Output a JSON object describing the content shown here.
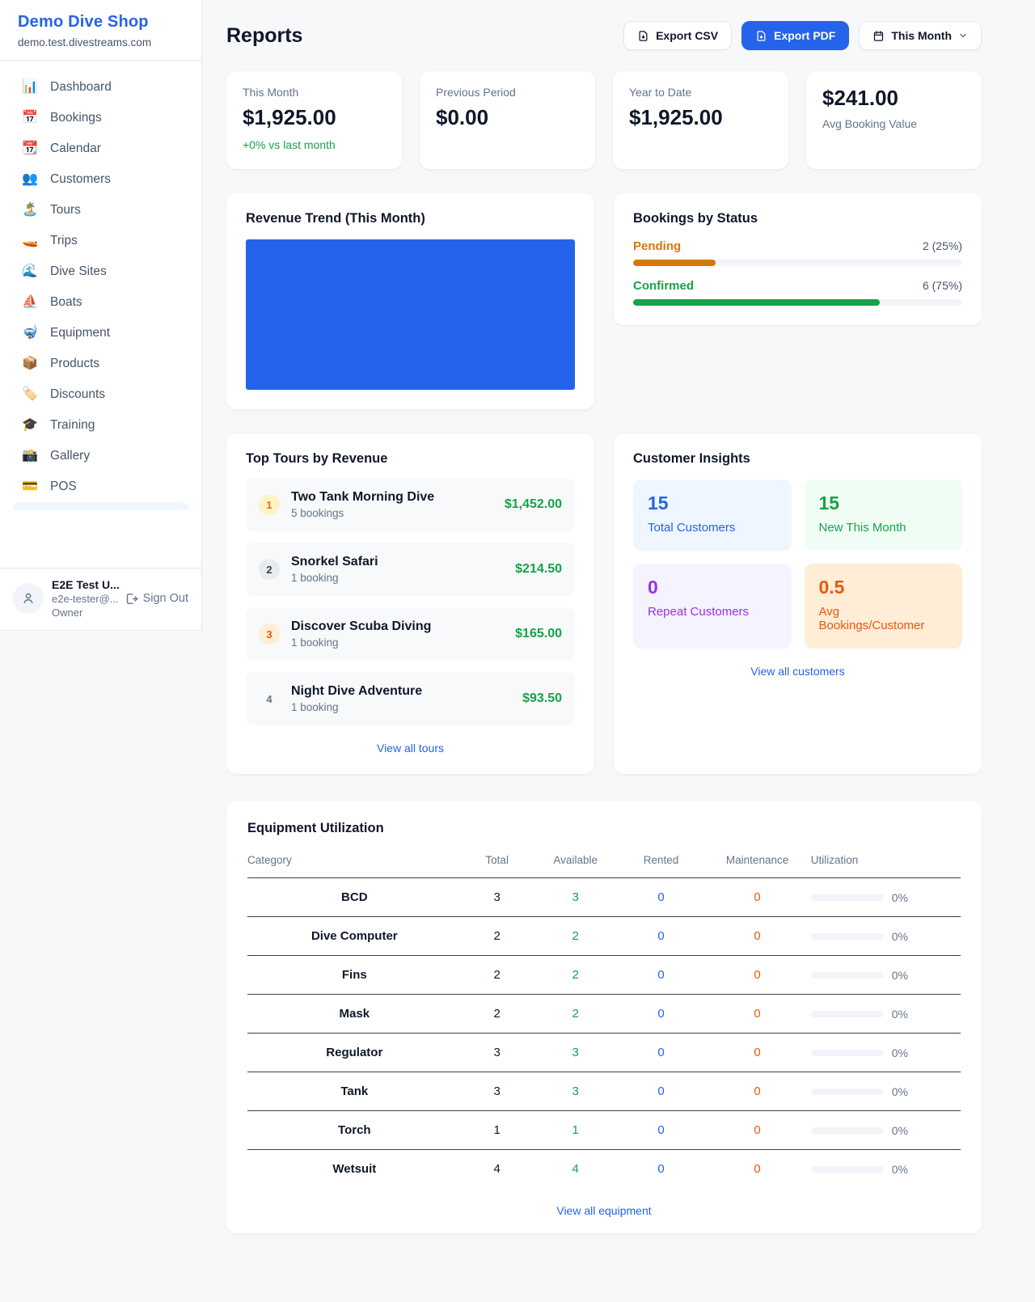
{
  "sidebar": {
    "shop_name": "Demo Dive Shop",
    "shop_domain": "demo.test.divestreams.com",
    "items": [
      {
        "icon": "📊",
        "label": "Dashboard"
      },
      {
        "icon": "📅",
        "label": "Bookings"
      },
      {
        "icon": "📆",
        "label": "Calendar"
      },
      {
        "icon": "👥",
        "label": "Customers"
      },
      {
        "icon": "🏝️",
        "label": "Tours"
      },
      {
        "icon": "🚤",
        "label": "Trips"
      },
      {
        "icon": "🌊",
        "label": "Dive Sites"
      },
      {
        "icon": "⛵",
        "label": "Boats"
      },
      {
        "icon": "🤿",
        "label": "Equipment"
      },
      {
        "icon": "📦",
        "label": "Products"
      },
      {
        "icon": "🏷️",
        "label": "Discounts"
      },
      {
        "icon": "🎓",
        "label": "Training"
      },
      {
        "icon": "📸",
        "label": "Gallery"
      },
      {
        "icon": "💳",
        "label": "POS"
      }
    ],
    "user": {
      "name": "E2E Test U...",
      "email": "e2e-tester@...",
      "role": "Owner",
      "sign_out_label": "Sign Out"
    }
  },
  "header": {
    "title": "Reports",
    "export_csv_label": "Export CSV",
    "export_pdf_label": "Export PDF",
    "period_label": "This Month"
  },
  "stats": [
    {
      "label": "This Month",
      "value": "$1,925.00",
      "delta": "+0% vs last month"
    },
    {
      "label": "Previous Period",
      "value": "$0.00"
    },
    {
      "label": "Year to Date",
      "value": "$1,925.00"
    },
    {
      "label": "Avg Booking Value",
      "value": "$241.00"
    }
  ],
  "revenue_trend": {
    "title": "Revenue Trend (This Month)",
    "bar_color": "#2563eb"
  },
  "bookings_by_status": {
    "title": "Bookings by Status",
    "rows": [
      {
        "label": "Pending",
        "count_text": "2 (25%)",
        "percent": 25,
        "color": "#d97706"
      },
      {
        "label": "Confirmed",
        "count_text": "6 (75%)",
        "percent": 75,
        "color": "#16a34a"
      }
    ]
  },
  "top_tours": {
    "title": "Top Tours by Revenue",
    "view_all_label": "View all tours",
    "items": [
      {
        "rank": "1",
        "name": "Two Tank Morning Dive",
        "bookings": "5 bookings",
        "revenue": "$1,452.00",
        "badge_bg": "#fef3c7",
        "badge_fg": "#d97706"
      },
      {
        "rank": "2",
        "name": "Snorkel Safari",
        "bookings": "1 booking",
        "revenue": "$214.50",
        "badge_bg": "#e9ecef",
        "badge_fg": "#374151"
      },
      {
        "rank": "3",
        "name": "Discover Scuba Diving",
        "bookings": "1 booking",
        "revenue": "$165.00",
        "badge_bg": "#ffedd5",
        "badge_fg": "#ea580c"
      },
      {
        "rank": "4",
        "name": "Night Dive Adventure",
        "bookings": "1 booking",
        "revenue": "$93.50",
        "badge_bg": "transparent",
        "badge_fg": "#6b7280"
      }
    ]
  },
  "customer_insights": {
    "title": "Customer Insights",
    "view_all_label": "View all customers",
    "tiles": [
      {
        "value": "15",
        "label": "Total Customers",
        "fg": "#2563eb",
        "bg": "#eff6ff"
      },
      {
        "value": "15",
        "label": "New This Month",
        "fg": "#16a34a",
        "bg": "#f0fdf4"
      },
      {
        "value": "0",
        "label": "Repeat Customers",
        "fg": "#9333ea",
        "bg": "#f5f3ff"
      },
      {
        "value": "0.5",
        "label": "Avg Bookings/Customer",
        "fg": "#ea580c",
        "bg": "#ffedd5"
      }
    ]
  },
  "equipment": {
    "title": "Equipment Utilization",
    "view_all_label": "View all equipment",
    "columns": [
      "Category",
      "Total",
      "Available",
      "Rented",
      "Maintenance",
      "Utilization"
    ],
    "rows": [
      {
        "category": "BCD",
        "total": "3",
        "available": "3",
        "rented": "0",
        "maintenance": "0",
        "utilization": "0%"
      },
      {
        "category": "Dive Computer",
        "total": "2",
        "available": "2",
        "rented": "0",
        "maintenance": "0",
        "utilization": "0%"
      },
      {
        "category": "Fins",
        "total": "2",
        "available": "2",
        "rented": "0",
        "maintenance": "0",
        "utilization": "0%"
      },
      {
        "category": "Mask",
        "total": "2",
        "available": "2",
        "rented": "0",
        "maintenance": "0",
        "utilization": "0%"
      },
      {
        "category": "Regulator",
        "total": "3",
        "available": "3",
        "rented": "0",
        "maintenance": "0",
        "utilization": "0%"
      },
      {
        "category": "Tank",
        "total": "3",
        "available": "3",
        "rented": "0",
        "maintenance": "0",
        "utilization": "0%"
      },
      {
        "category": "Torch",
        "total": "1",
        "available": "1",
        "rented": "0",
        "maintenance": "0",
        "utilization": "0%"
      },
      {
        "category": "Wetsuit",
        "total": "4",
        "available": "4",
        "rented": "0",
        "maintenance": "0",
        "utilization": "0%"
      }
    ]
  }
}
